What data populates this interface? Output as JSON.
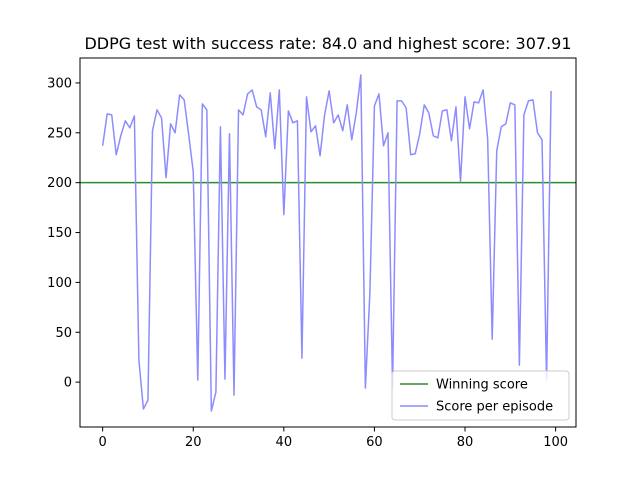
{
  "chart_data": {
    "type": "line",
    "title": "DDPG test with success rate: 84.0 and highest score: 307.91",
    "xlabel": "",
    "ylabel": "",
    "xlim": [
      -5,
      104.5
    ],
    "ylim": [
      -45,
      325
    ],
    "xticks": [
      0,
      20,
      40,
      60,
      80,
      100
    ],
    "yticks": [
      0,
      50,
      100,
      150,
      200,
      250,
      300
    ],
    "grid": false,
    "legend_position": "lower right",
    "reference_line": {
      "name": "Winning score",
      "y": 200,
      "color": "#2e8b2e"
    },
    "series": [
      {
        "name": "Score per episode",
        "color": "#8c8cff",
        "x": [
          0,
          1,
          2,
          3,
          4,
          5,
          6,
          7,
          8,
          9,
          10,
          11,
          12,
          13,
          14,
          15,
          16,
          17,
          18,
          19,
          20,
          21,
          22,
          23,
          24,
          25,
          26,
          27,
          28,
          29,
          30,
          31,
          32,
          33,
          34,
          35,
          36,
          37,
          38,
          39,
          40,
          41,
          42,
          43,
          44,
          45,
          46,
          47,
          48,
          49,
          50,
          51,
          52,
          53,
          54,
          55,
          56,
          57,
          58,
          59,
          60,
          61,
          62,
          63,
          64,
          65,
          66,
          67,
          68,
          69,
          70,
          71,
          72,
          73,
          74,
          75,
          76,
          77,
          78,
          79,
          80,
          81,
          82,
          83,
          84,
          85,
          86,
          87,
          88,
          89,
          90,
          91,
          92,
          93,
          94,
          95,
          96,
          97,
          98,
          99
        ],
        "values": [
          237,
          269,
          268,
          228,
          247,
          262,
          255,
          267,
          22,
          -27,
          -18,
          252,
          273,
          265,
          205,
          259,
          250,
          288,
          283,
          248,
          211,
          2,
          279,
          273,
          -29,
          -10,
          256,
          3,
          249,
          -13,
          273,
          268,
          289,
          293,
          276,
          273,
          246,
          290,
          234,
          293,
          168,
          272,
          260,
          262,
          24,
          286,
          251,
          257,
          227,
          268,
          292,
          260,
          268,
          252,
          278,
          243,
          270,
          308,
          -6,
          90,
          277,
          289,
          237,
          250,
          -5,
          282,
          282,
          275,
          228,
          229,
          249,
          278,
          270,
          247,
          245,
          272,
          273,
          242,
          276,
          201,
          286,
          254,
          281,
          280,
          293,
          244,
          43,
          232,
          256,
          259,
          280,
          278,
          17,
          268,
          282,
          283,
          250,
          243,
          2,
          292
        ]
      }
    ],
    "legend": [
      "Winning score",
      "Score per episode"
    ]
  }
}
